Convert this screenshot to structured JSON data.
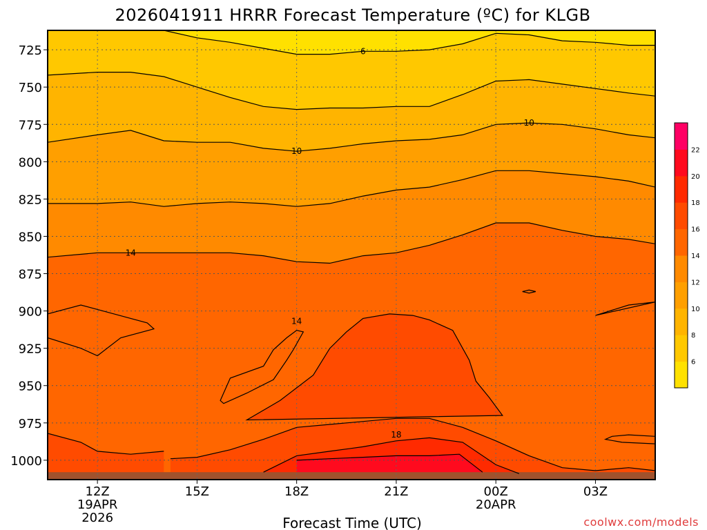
{
  "chart_data": {
    "type": "heatmap",
    "title": "2026041911 HRRR Forecast Temperature (ºC) for KLGB",
    "xlabel": "Forecast Time (UTC)",
    "ylabel": "",
    "y_axis": {
      "reversed": true,
      "ylim": [
        1013,
        712
      ],
      "ticks": [
        725,
        750,
        775,
        800,
        825,
        850,
        875,
        900,
        925,
        950,
        975,
        1000
      ]
    },
    "x_axis": {
      "xlim": [
        10.5,
        28.8
      ],
      "ticks": [
        {
          "hour": 12,
          "label": "12Z",
          "date": "19APR",
          "year": "2026"
        },
        {
          "hour": 15,
          "label": "15Z",
          "date": "",
          "year": ""
        },
        {
          "hour": 18,
          "label": "18Z",
          "date": "",
          "year": ""
        },
        {
          "hour": 21,
          "label": "21Z",
          "date": "",
          "year": ""
        },
        {
          "hour": 24,
          "label": "00Z",
          "date": "20APR",
          "year": ""
        },
        {
          "hour": 27,
          "label": "03Z",
          "date": "",
          "year": ""
        }
      ]
    },
    "grid": true,
    "colorbar": {
      "position": "right",
      "levels": [
        4,
        6,
        8,
        10,
        12,
        14,
        16,
        18,
        20,
        22,
        24
      ],
      "tick_labels": [
        "6",
        "8",
        "10",
        "12",
        "14",
        "16",
        "18",
        "20",
        "22"
      ],
      "colors": [
        "#ffe100",
        "#ffc800",
        "#ffb400",
        "#ff9f00",
        "#ff8a00",
        "#ff6600",
        "#ff4b00",
        "#ff2a00",
        "#ff0a1e",
        "#ff0064"
      ]
    },
    "terrain_color": "#a0522d",
    "hours": [
      10.5,
      12,
      13,
      14,
      15,
      16,
      17,
      18,
      19,
      20,
      21,
      22,
      23,
      24,
      25,
      26,
      27,
      28,
      28.8
    ],
    "isotherms": [
      {
        "level": 6,
        "points": [
          [
            10.5,
            712
          ],
          [
            14,
            712
          ],
          [
            15,
            717
          ],
          [
            16,
            720
          ],
          [
            17,
            724
          ],
          [
            18,
            728
          ],
          [
            19,
            728
          ],
          [
            20,
            726
          ],
          [
            21,
            726
          ],
          [
            22,
            725
          ],
          [
            23,
            721
          ],
          [
            24,
            714
          ],
          [
            25,
            715
          ],
          [
            26,
            719
          ],
          [
            27,
            720
          ],
          [
            28,
            722
          ],
          [
            28.8,
            722
          ]
        ]
      },
      {
        "level": 8,
        "points": [
          [
            10.5,
            742
          ],
          [
            12,
            740
          ],
          [
            13,
            740
          ],
          [
            14,
            743
          ],
          [
            15,
            750
          ],
          [
            16,
            757
          ],
          [
            17,
            763
          ],
          [
            18,
            765
          ],
          [
            19,
            764
          ],
          [
            20,
            764
          ],
          [
            21,
            763
          ],
          [
            22,
            763
          ],
          [
            23,
            755
          ],
          [
            24,
            746
          ],
          [
            25,
            745
          ],
          [
            26,
            748
          ],
          [
            27,
            751
          ],
          [
            28,
            754
          ],
          [
            28.8,
            756
          ]
        ]
      },
      {
        "level": 10,
        "points": [
          [
            10.5,
            787
          ],
          [
            12,
            782
          ],
          [
            13,
            779
          ],
          [
            14,
            786
          ],
          [
            15,
            787
          ],
          [
            16,
            787
          ],
          [
            17,
            791
          ],
          [
            18,
            793
          ],
          [
            19,
            791
          ],
          [
            20,
            788
          ],
          [
            21,
            786
          ],
          [
            22,
            785
          ],
          [
            23,
            782
          ],
          [
            24,
            775
          ],
          [
            25,
            774
          ],
          [
            26,
            775
          ],
          [
            27,
            778
          ],
          [
            28,
            782
          ],
          [
            28.8,
            784
          ]
        ]
      },
      {
        "level": 12,
        "points": [
          [
            10.5,
            828
          ],
          [
            12,
            828
          ],
          [
            13,
            827
          ],
          [
            14,
            830
          ],
          [
            15,
            828
          ],
          [
            16,
            827
          ],
          [
            17,
            828
          ],
          [
            18,
            830
          ],
          [
            19,
            828
          ],
          [
            20,
            823
          ],
          [
            21,
            819
          ],
          [
            22,
            817
          ],
          [
            23,
            812
          ],
          [
            24,
            806
          ],
          [
            25,
            806
          ],
          [
            26,
            808
          ],
          [
            27,
            810
          ],
          [
            28,
            813
          ],
          [
            28.8,
            817
          ]
        ]
      },
      {
        "level": 14,
        "points": [
          [
            10.5,
            864
          ],
          [
            12,
            861
          ],
          [
            13,
            861
          ],
          [
            14,
            861
          ],
          [
            15,
            861
          ],
          [
            16,
            861
          ],
          [
            17,
            863
          ],
          [
            18,
            867
          ],
          [
            19,
            868
          ],
          [
            20,
            863
          ],
          [
            21,
            861
          ],
          [
            22,
            856
          ],
          [
            23,
            849
          ],
          [
            24,
            841
          ],
          [
            25,
            841
          ],
          [
            26,
            846
          ],
          [
            27,
            850
          ],
          [
            28,
            852
          ],
          [
            28.8,
            855
          ]
        ]
      },
      {
        "level": 16,
        "points": [
          [
            10.5,
            982
          ],
          [
            11.5,
            988
          ],
          [
            12,
            994
          ],
          [
            13,
            996
          ],
          [
            14,
            994
          ]
        ]
      },
      {
        "level": 16,
        "points": [
          [
            14.2,
            999
          ],
          [
            15,
            998
          ],
          [
            16,
            993
          ],
          [
            17,
            986
          ],
          [
            18,
            978
          ],
          [
            19,
            976
          ],
          [
            20,
            974
          ],
          [
            21,
            972
          ],
          [
            22,
            972
          ],
          [
            23,
            978
          ],
          [
            24,
            987
          ],
          [
            25,
            997
          ],
          [
            26,
            1005
          ],
          [
            27,
            1007
          ],
          [
            28,
            1005
          ],
          [
            28.8,
            1007
          ]
        ]
      },
      {
        "level": 18,
        "points": [
          [
            17,
            1008
          ],
          [
            18,
            997
          ],
          [
            19,
            994
          ],
          [
            20,
            991
          ],
          [
            21,
            987
          ],
          [
            22,
            985
          ],
          [
            23,
            988
          ],
          [
            24,
            1003
          ],
          [
            24.7,
            1009
          ]
        ]
      },
      {
        "level": 20,
        "points": [
          [
            18,
            1000
          ],
          [
            19,
            999
          ],
          [
            20,
            998
          ],
          [
            21,
            997
          ],
          [
            22,
            997
          ],
          [
            22.9,
            996
          ],
          [
            23.6,
            1008
          ]
        ]
      }
    ],
    "closed_contours": [
      {
        "level": 14,
        "points": [
          [
            10.5,
            902
          ],
          [
            11.5,
            896
          ],
          [
            12.5,
            902
          ],
          [
            13.5,
            908
          ],
          [
            13.7,
            912
          ],
          [
            12.7,
            918
          ],
          [
            12,
            930
          ],
          [
            11.5,
            925
          ],
          [
            10.5,
            918
          ]
        ]
      },
      {
        "level": 14,
        "points": [
          [
            15.7,
            960
          ],
          [
            16,
            945
          ],
          [
            17,
            937
          ],
          [
            17.3,
            926
          ],
          [
            17.7,
            918
          ],
          [
            18,
            913
          ],
          [
            18.2,
            914
          ],
          [
            17.9,
            926
          ],
          [
            17.7,
            933
          ],
          [
            17.3,
            946
          ],
          [
            16.5,
            955
          ],
          [
            15.8,
            962
          ]
        ]
      },
      {
        "level": 16,
        "points": [
          [
            16.5,
            973
          ],
          [
            17.5,
            960
          ],
          [
            18.5,
            943
          ],
          [
            19,
            925
          ],
          [
            19.5,
            914
          ],
          [
            20,
            905
          ],
          [
            20.8,
            902
          ],
          [
            21.5,
            903
          ],
          [
            22,
            906
          ],
          [
            22.7,
            913
          ],
          [
            23.2,
            933
          ],
          [
            23.4,
            947
          ],
          [
            23.8,
            958
          ],
          [
            24.2,
            970
          ]
        ]
      },
      {
        "level": 14,
        "points": [
          [
            24.8,
            887
          ],
          [
            25,
            886
          ],
          [
            25.2,
            887
          ],
          [
            25,
            888
          ]
        ]
      },
      {
        "level": 14,
        "points": [
          [
            27,
            903
          ],
          [
            28,
            896
          ],
          [
            28.8,
            894
          ]
        ]
      },
      {
        "level": 14,
        "points": [
          [
            28.8,
            984
          ],
          [
            28,
            983
          ],
          [
            27.5,
            984
          ],
          [
            27.3,
            986
          ],
          [
            27.8,
            988
          ],
          [
            28.8,
            989
          ]
        ]
      }
    ],
    "contour_labels": [
      {
        "text": "6",
        "hour": 20,
        "p": 726
      },
      {
        "text": "10",
        "hour": 18,
        "p": 793
      },
      {
        "text": "10",
        "hour": 25,
        "p": 774
      },
      {
        "text": "14",
        "hour": 13,
        "p": 861
      },
      {
        "text": "14",
        "hour": 18,
        "p": 907
      },
      {
        "text": "18",
        "hour": 21,
        "p": 983
      }
    ]
  },
  "credit": "coolwx.com/models"
}
